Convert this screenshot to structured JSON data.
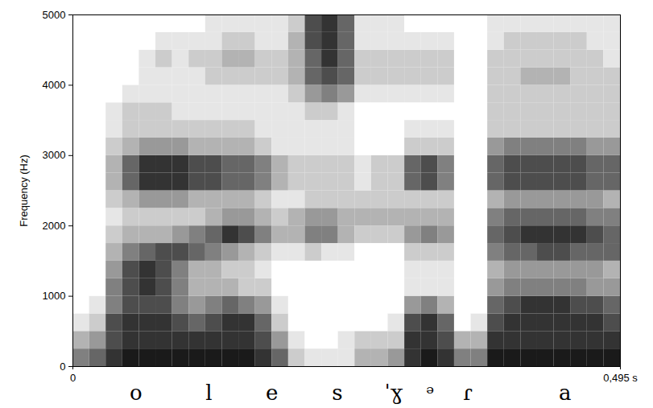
{
  "chart_data": {
    "type": "heatmap",
    "y_label": "Frequency (Hz)",
    "xlim": [
      0,
      0.495
    ],
    "xticks": [
      0,
      {
        "value": 0.495,
        "label": "0,495 s"
      }
    ],
    "ylim": [
      0,
      5000
    ],
    "yticks": [
      0,
      1000,
      2000,
      3000,
      4000,
      5000
    ],
    "grid": false,
    "segments": [
      {
        "label": "o",
        "time": 0.057
      },
      {
        "label": "l",
        "time": 0.123
      },
      {
        "label": "e",
        "time": 0.18
      },
      {
        "label": "s",
        "time": 0.239
      },
      {
        "label": "ˈɣ",
        "time": 0.29
      },
      {
        "label": "ᵊ",
        "time": 0.323
      },
      {
        "label": "ɾ",
        "time": 0.357
      },
      {
        "label": "a",
        "time": 0.445
      }
    ],
    "cells": [
      [
        5,
        3,
        1,
        0,
        0,
        0,
        0,
        0,
        0,
        0,
        0,
        0,
        0,
        0,
        0,
        0,
        0,
        0,
        0,
        0
      ],
      [
        6,
        4,
        2,
        1,
        0,
        0,
        0,
        0,
        0,
        0,
        0,
        0,
        0,
        0,
        0,
        0,
        0,
        0,
        0,
        0
      ],
      [
        8,
        7,
        7,
        5,
        5,
        4,
        3,
        2,
        1,
        2,
        3,
        3,
        2,
        1,
        1,
        0,
        0,
        0,
        0,
        0
      ],
      [
        9,
        8,
        8,
        7,
        7,
        7,
        5,
        3,
        2,
        3,
        6,
        6,
        3,
        2,
        2,
        1,
        0,
        0,
        0,
        0
      ],
      [
        9,
        8,
        8,
        7,
        8,
        8,
        6,
        3,
        2,
        4,
        8,
        8,
        4,
        2,
        2,
        1,
        1,
        1,
        0,
        0
      ],
      [
        9,
        8,
        8,
        7,
        7,
        7,
        7,
        3,
        2,
        4,
        8,
        8,
        4,
        2,
        2,
        1,
        1,
        2,
        1,
        0
      ],
      [
        9,
        8,
        7,
        5,
        5,
        5,
        7,
        4,
        2,
        4,
        8,
        8,
        4,
        2,
        1,
        1,
        1,
        1,
        1,
        0
      ],
      [
        9,
        8,
        6,
        4,
        3,
        3,
        6,
        5,
        2,
        3,
        7,
        7,
        3,
        2,
        1,
        1,
        1,
        2,
        1,
        0
      ],
      [
        9,
        8,
        7,
        5,
        3,
        3,
        5,
        6,
        3,
        3,
        7,
        7,
        3,
        2,
        1,
        1,
        2,
        2,
        1,
        1
      ],
      [
        9,
        8,
        8,
        6,
        3,
        2,
        4,
        8,
        4,
        3,
        6,
        6,
        3,
        2,
        1,
        1,
        2,
        3,
        2,
        1
      ],
      [
        9,
        8,
        8,
        5,
        2,
        2,
        3,
        7,
        4,
        3,
        6,
        6,
        3,
        2,
        1,
        1,
        2,
        3,
        2,
        1
      ],
      [
        8,
        7,
        6,
        4,
        2,
        1,
        2,
        5,
        3,
        2,
        5,
        5,
        2,
        1,
        1,
        1,
        2,
        2,
        1,
        1
      ],
      [
        6,
        4,
        2,
        1,
        0,
        0,
        1,
        3,
        2,
        1,
        3,
        3,
        1,
        1,
        1,
        1,
        2,
        2,
        1,
        1
      ],
      [
        2,
        1,
        0,
        0,
        0,
        0,
        1,
        3,
        3,
        1,
        2,
        2,
        1,
        1,
        1,
        2,
        3,
        3,
        3,
        2
      ],
      [
        1,
        0,
        0,
        0,
        0,
        0,
        2,
        5,
        4,
        2,
        2,
        2,
        1,
        1,
        2,
        4,
        6,
        6,
        7,
        7
      ],
      [
        1,
        0,
        0,
        0,
        0,
        0,
        1,
        5,
        4,
        2,
        2,
        2,
        1,
        1,
        2,
        5,
        7,
        8,
        8,
        8
      ],
      [
        1,
        1,
        0,
        0,
        0,
        0,
        1,
        3,
        3,
        2,
        2,
        2,
        1,
        1,
        1,
        4,
        6,
        6,
        6,
        6
      ],
      [
        3,
        2,
        0,
        0,
        0,
        0,
        0,
        2,
        3,
        2,
        1,
        1,
        0,
        0,
        0,
        1,
        2,
        2,
        1,
        1
      ],
      [
        3,
        2,
        0,
        0,
        0,
        0,
        0,
        2,
        3,
        2,
        2,
        2,
        0,
        0,
        0,
        1,
        2,
        2,
        1,
        1
      ],
      [
        4,
        2,
        1,
        0,
        0,
        0,
        0,
        2,
        3,
        2,
        2,
        2,
        0,
        0,
        0,
        1,
        2,
        2,
        1,
        1
      ],
      [
        8,
        8,
        7,
        4,
        1,
        1,
        2,
        4,
        3,
        2,
        6,
        6,
        2,
        1,
        0,
        1,
        2,
        2,
        1,
        0
      ],
      [
        9,
        8,
        8,
        5,
        1,
        1,
        2,
        5,
        3,
        2,
        7,
        7,
        2,
        1,
        0,
        1,
        2,
        2,
        1,
        0
      ],
      [
        8,
        7,
        6,
        3,
        1,
        1,
        2,
        4,
        3,
        2,
        5,
        5,
        2,
        1,
        0,
        1,
        2,
        2,
        1,
        0
      ],
      [
        5,
        3,
        0,
        0,
        0,
        0,
        0,
        0,
        0,
        0,
        0,
        0,
        0,
        0,
        0,
        0,
        0,
        0,
        0,
        0
      ],
      [
        5,
        3,
        1,
        0,
        0,
        0,
        0,
        0,
        0,
        0,
        0,
        0,
        0,
        0,
        0,
        0,
        0,
        0,
        0,
        0
      ],
      [
        9,
        8,
        7,
        6,
        4,
        3,
        5,
        6,
        5,
        3,
        6,
        6,
        4,
        2,
        2,
        2,
        2,
        2,
        1,
        1
      ],
      [
        9,
        8,
        8,
        7,
        5,
        4,
        6,
        7,
        6,
        4,
        7,
        7,
        5,
        2,
        2,
        2,
        2,
        2,
        2,
        1
      ],
      [
        9,
        8,
        8,
        8,
        5,
        4,
        6,
        8,
        6,
        4,
        7,
        7,
        5,
        2,
        2,
        2,
        3,
        2,
        2,
        1
      ],
      [
        9,
        8,
        8,
        8,
        5,
        4,
        7,
        8,
        6,
        4,
        7,
        7,
        5,
        2,
        2,
        2,
        3,
        2,
        2,
        1
      ],
      [
        9,
        8,
        8,
        8,
        5,
        4,
        7,
        8,
        6,
        4,
        7,
        7,
        5,
        2,
        2,
        2,
        3,
        2,
        2,
        1
      ],
      [
        9,
        8,
        8,
        7,
        5,
        4,
        6,
        8,
        6,
        4,
        7,
        7,
        5,
        2,
        2,
        2,
        2,
        2,
        2,
        1
      ],
      [
        9,
        8,
        8,
        7,
        4,
        4,
        6,
        7,
        5,
        4,
        6,
        6,
        4,
        2,
        2,
        2,
        2,
        2,
        1,
        1
      ],
      [
        9,
        8,
        7,
        6,
        4,
        3,
        6,
        6,
        5,
        3,
        6,
        6,
        4,
        2,
        2,
        2,
        2,
        1,
        1,
        1
      ]
    ]
  }
}
